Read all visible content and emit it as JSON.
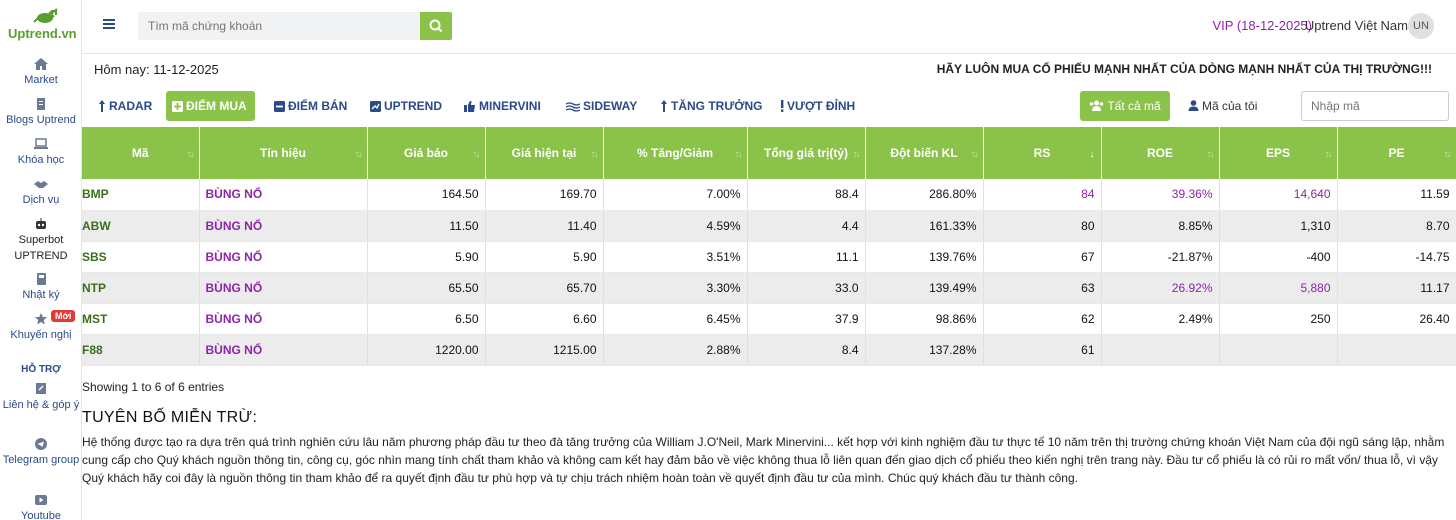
{
  "brand": {
    "name": "Uptrend.vn"
  },
  "sidebar": {
    "items": [
      {
        "label": "Market",
        "icon": "home-icon"
      },
      {
        "label": "Blogs Uptrend",
        "icon": "document-icon"
      },
      {
        "label": "Khóa học",
        "icon": "laptop-icon"
      },
      {
        "label": "Dịch vụ",
        "icon": "handshake-icon"
      },
      {
        "label": "Superbot UPTREND",
        "icon": "robot-icon"
      },
      {
        "label": "Nhật ký",
        "icon": "book-icon"
      },
      {
        "label": "Khuyến nghị",
        "icon": "star-icon",
        "badge": "Mới"
      }
    ],
    "support_title": "HỖ TRỢ",
    "support_items": [
      {
        "label": "Liên hệ & góp ý",
        "icon": "edit-icon"
      },
      {
        "label": "Telegram group",
        "icon": "telegram-icon"
      },
      {
        "label": "Youtube",
        "icon": "youtube-icon"
      }
    ]
  },
  "header": {
    "search_placeholder": "Tìm mã chứng khoán",
    "vip": "VIP (18-12-2025)",
    "user_name": "Uptrend Việt Nam",
    "avatar": "UN"
  },
  "info": {
    "today": "Hôm nay: 11-12-2025",
    "slogan": "HÃY LUÔN MUA CỔ PHIẾU MẠNH NHẤT CỦA DÒNG MẠNH NHẤT CỦA THỊ TRƯỜNG!!!"
  },
  "tabs": [
    {
      "label": "RADAR"
    },
    {
      "label": "ĐIỂM MUA",
      "active": true
    },
    {
      "label": "ĐIỂM BÁN"
    },
    {
      "label": "UPTREND"
    },
    {
      "label": "MINERVINI"
    },
    {
      "label": "SIDEWAY"
    },
    {
      "label": "TĂNG TRƯỞNG"
    },
    {
      "label": "VƯỢT ĐỈNH"
    }
  ],
  "filters": {
    "all_label": "Tất cả mã",
    "mine_label": "Mã của tôi",
    "code_placeholder": "Nhập mã"
  },
  "table": {
    "columns": [
      "Mã",
      "Tín hiệu",
      "Giá báo",
      "Giá hiện tại",
      "% Tăng/Giảm",
      "Tổng giá trị(tỷ)",
      "Đột biến KL",
      "RS",
      "ROE",
      "EPS",
      "PE"
    ],
    "rows": [
      [
        "BMP",
        "BÙNG NỔ",
        "164.50",
        "169.70",
        "7.00%",
        "88.4",
        "286.80%",
        "84",
        "39.36%",
        "14,640",
        "11.59"
      ],
      [
        "ABW",
        "BÙNG NỔ",
        "11.50",
        "11.40",
        "4.59%",
        "4.4",
        "161.33%",
        "80",
        "8.85%",
        "1,310",
        "8.70"
      ],
      [
        "SBS",
        "BÙNG NỔ",
        "5.90",
        "5.90",
        "3.51%",
        "11.1",
        "139.76%",
        "67",
        "-21.87%",
        "-400",
        "-14.75"
      ],
      [
        "NTP",
        "BÙNG NỔ",
        "65.50",
        "65.70",
        "3.30%",
        "33.0",
        "139.49%",
        "63",
        "26.92%",
        "5,880",
        "11.17"
      ],
      [
        "MST",
        "BÙNG NỔ",
        "6.50",
        "6.60",
        "6.45%",
        "37.9",
        "98.86%",
        "62",
        "2.49%",
        "250",
        "26.40"
      ],
      [
        "F88",
        "BÙNG NỔ",
        "1220.00",
        "1215.00",
        "2.88%",
        "8.4",
        "137.28%",
        "61",
        "",
        "",
        ""
      ]
    ],
    "highlight_color": "#8e24aa"
  },
  "showing": "Showing 1 to 6 of 6 entries",
  "disclaimer": {
    "title": "TUYÊN BỐ MIỄN TRỪ:",
    "body": "Hệ thống được tạo ra dựa trên quá trình nghiên cứu lâu năm phương pháp đầu tư theo đà tăng trưởng của William J.O'Neil, Mark Minervini... kết hợp với kinh nghiệm đầu tư thực tế 10 năm trên thị trường chứng khoán Việt Nam của đội ngũ sáng lập, nhằm cung cấp cho Quý khách nguồn thông tin, công cụ, góc nhìn mang tính chất tham khảo và không cam kết hay đảm bảo về việc không thua lỗ liên quan đến giao dịch cổ phiếu theo kiến nghị trên trang này. Đầu tư cổ phiếu là có rủi ro mất vốn/ thua lỗ, vì vậy Quý khách hãy coi đây là nguồn thông tin tham khảo để ra quyết định đầu tư phù hợp và tự chịu trách nhiệm hoàn toàn về quyết định đầu tư của mình. Chúc quý khách đầu tư thành công."
  },
  "colors": {
    "accent": "#8bc34a",
    "nav": "#2a4a8a",
    "signal": "#8e24aa",
    "ticker": "#3b6e1a"
  }
}
